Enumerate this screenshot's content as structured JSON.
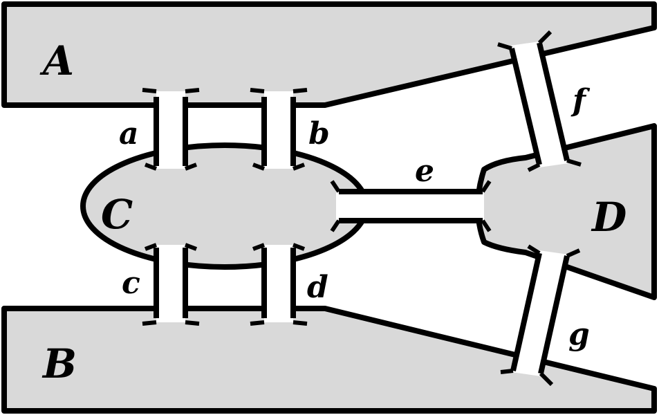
{
  "landmasses": {
    "A": "A",
    "B": "B",
    "C": "C",
    "D": "D"
  },
  "bridges": {
    "a": "a",
    "b": "b",
    "c": "c",
    "d": "d",
    "e": "e",
    "f": "f",
    "g": "g"
  },
  "colors": {
    "land": "#d9d9d9",
    "water": "#ffffff",
    "outline": "#000000"
  }
}
